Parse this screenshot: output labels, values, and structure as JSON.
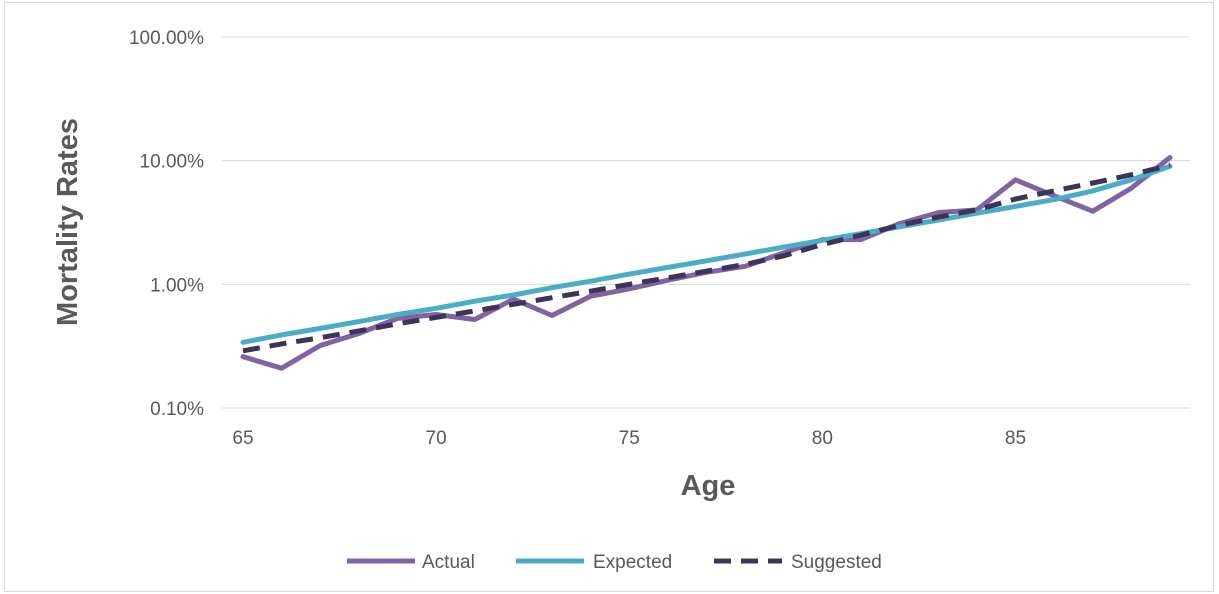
{
  "chart_data": {
    "type": "line",
    "title": "",
    "xlabel": "Age",
    "ylabel": "Mortality Rates",
    "y_scale": "log",
    "xlim": [
      65,
      89
    ],
    "ylim": [
      0.001,
      1.0
    ],
    "x_ticks": [
      65,
      70,
      75,
      80,
      85
    ],
    "x_tick_labels": [
      "65",
      "70",
      "75",
      "80",
      "85"
    ],
    "y_ticks": [
      0.001,
      0.01,
      0.1,
      1.0
    ],
    "y_tick_labels": [
      "0.10%",
      "1.00%",
      "10.00%",
      "100.00%"
    ],
    "grid": "horizontal",
    "legend_position": "bottom",
    "x": [
      65,
      66,
      67,
      68,
      69,
      70,
      71,
      72,
      73,
      74,
      75,
      76,
      77,
      78,
      79,
      80,
      81,
      82,
      83,
      84,
      85,
      86,
      87,
      88,
      89
    ],
    "series": [
      {
        "name": "Actual",
        "color": "#8064A2",
        "style": "solid",
        "values": [
          0.0026,
          0.0021,
          0.0032,
          0.004,
          0.0053,
          0.0057,
          0.0052,
          0.0076,
          0.0056,
          0.008,
          0.0092,
          0.0108,
          0.0125,
          0.014,
          0.018,
          0.023,
          0.023,
          0.031,
          0.038,
          0.04,
          0.07,
          0.052,
          0.039,
          0.06,
          0.106
        ]
      },
      {
        "name": "Expected",
        "color": "#4BACC6",
        "style": "solid",
        "values": [
          0.0034,
          0.0039,
          0.0044,
          0.005,
          0.0057,
          0.0064,
          0.0073,
          0.0082,
          0.0094,
          0.0106,
          0.0121,
          0.0137,
          0.0155,
          0.0176,
          0.02,
          0.0227,
          0.0257,
          0.0292,
          0.0331,
          0.0376,
          0.0427,
          0.0484,
          0.057,
          0.07,
          0.09
        ]
      },
      {
        "name": "Suggested",
        "color": "#3E3358",
        "style": "dashed",
        "values": [
          0.0029,
          0.0033,
          0.0037,
          0.0042,
          0.0048,
          0.0054,
          0.0061,
          0.0069,
          0.0078,
          0.0088,
          0.01,
          0.0113,
          0.0128,
          0.0145,
          0.017,
          0.021,
          0.025,
          0.03,
          0.035,
          0.04,
          0.049,
          0.057,
          0.066,
          0.077,
          0.092
        ]
      }
    ]
  }
}
